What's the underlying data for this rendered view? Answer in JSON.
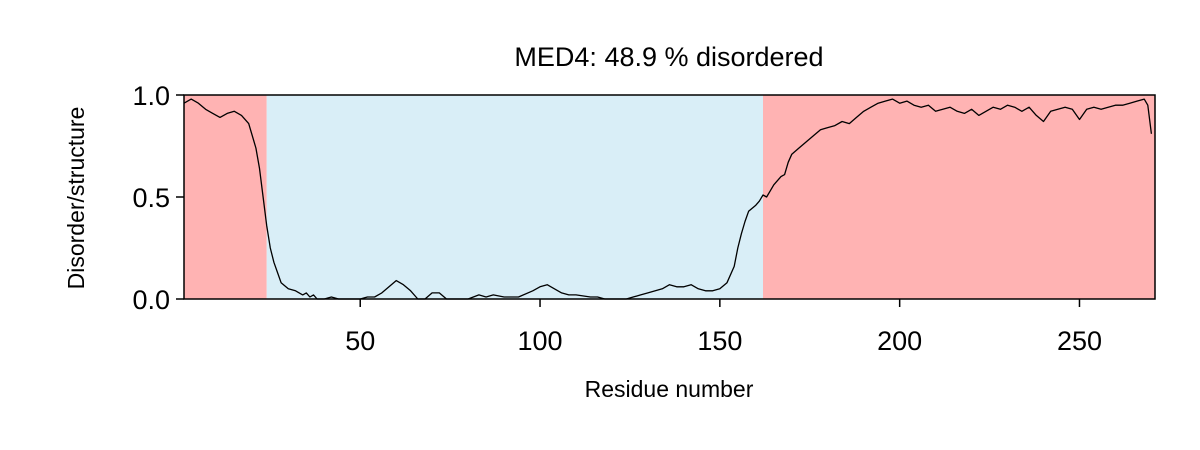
{
  "chart_data": {
    "type": "line",
    "title": "MED4: 48.9 % disordered",
    "xlabel": "Residue number",
    "ylabel": "Disorder/structure",
    "xlim": [
      1,
      271
    ],
    "ylim": [
      0,
      1
    ],
    "xticks": [
      50,
      100,
      150,
      200,
      250
    ],
    "yticks": [
      0.0,
      0.5,
      1.0
    ],
    "ytick_labels": [
      "0.0",
      "0.5",
      "1.0"
    ],
    "grid": false,
    "regions": [
      {
        "kind": "disordered",
        "start": 1,
        "end": 24,
        "color": "#ffb3b3"
      },
      {
        "kind": "structured",
        "start": 24,
        "end": 162,
        "color": "#d9eef7"
      },
      {
        "kind": "disordered",
        "start": 162,
        "end": 271,
        "color": "#ffb3b3"
      }
    ],
    "series": [
      {
        "line_color": "#000000",
        "x": [
          1,
          3,
          5,
          7,
          9,
          11,
          13,
          15,
          17,
          19,
          21,
          22,
          23,
          24,
          25,
          26,
          27,
          28,
          30,
          32,
          34,
          35,
          36,
          37,
          38,
          40,
          42,
          44,
          46,
          50,
          52,
          54,
          56,
          58,
          60,
          62,
          64,
          66,
          68,
          70,
          72,
          74,
          76,
          80,
          83,
          85,
          87,
          90,
          94,
          98,
          100,
          102,
          104,
          106,
          108,
          110,
          114,
          116,
          118,
          120,
          124,
          128,
          130,
          134,
          136,
          138,
          140,
          142,
          144,
          146,
          148,
          150,
          152,
          154,
          155,
          156,
          157,
          158,
          160,
          161,
          162,
          163,
          164,
          165,
          166,
          167,
          168,
          169,
          170,
          172,
          174,
          176,
          178,
          180,
          182,
          184,
          186,
          188,
          190,
          192,
          194,
          196,
          198,
          200,
          202,
          204,
          206,
          208,
          210,
          212,
          214,
          216,
          218,
          220,
          222,
          224,
          226,
          228,
          230,
          232,
          234,
          236,
          238,
          240,
          242,
          244,
          246,
          248,
          250,
          252,
          254,
          256,
          258,
          260,
          262,
          264,
          266,
          268,
          269,
          270
        ],
        "y": [
          0.96,
          0.98,
          0.96,
          0.93,
          0.91,
          0.89,
          0.91,
          0.92,
          0.9,
          0.86,
          0.74,
          0.64,
          0.5,
          0.36,
          0.25,
          0.18,
          0.13,
          0.08,
          0.05,
          0.04,
          0.02,
          0.03,
          0.01,
          0.02,
          0.0,
          0.0,
          0.01,
          0.0,
          0.0,
          0.0,
          0.01,
          0.01,
          0.03,
          0.06,
          0.09,
          0.07,
          0.04,
          0.0,
          0.0,
          0.03,
          0.03,
          0.0,
          0.0,
          0.0,
          0.02,
          0.01,
          0.02,
          0.01,
          0.01,
          0.04,
          0.06,
          0.07,
          0.05,
          0.03,
          0.02,
          0.02,
          0.01,
          0.01,
          0.0,
          0.0,
          0.0,
          0.02,
          0.03,
          0.05,
          0.07,
          0.06,
          0.06,
          0.07,
          0.05,
          0.04,
          0.04,
          0.05,
          0.08,
          0.16,
          0.25,
          0.32,
          0.38,
          0.43,
          0.46,
          0.48,
          0.51,
          0.5,
          0.53,
          0.56,
          0.58,
          0.6,
          0.61,
          0.67,
          0.71,
          0.74,
          0.77,
          0.8,
          0.83,
          0.84,
          0.85,
          0.87,
          0.86,
          0.89,
          0.92,
          0.94,
          0.96,
          0.97,
          0.98,
          0.96,
          0.97,
          0.95,
          0.94,
          0.95,
          0.92,
          0.93,
          0.94,
          0.92,
          0.91,
          0.93,
          0.9,
          0.92,
          0.94,
          0.93,
          0.95,
          0.94,
          0.92,
          0.94,
          0.9,
          0.87,
          0.92,
          0.93,
          0.94,
          0.93,
          0.88,
          0.93,
          0.94,
          0.93,
          0.94,
          0.95,
          0.95,
          0.96,
          0.97,
          0.98,
          0.95,
          0.81
        ]
      }
    ]
  }
}
